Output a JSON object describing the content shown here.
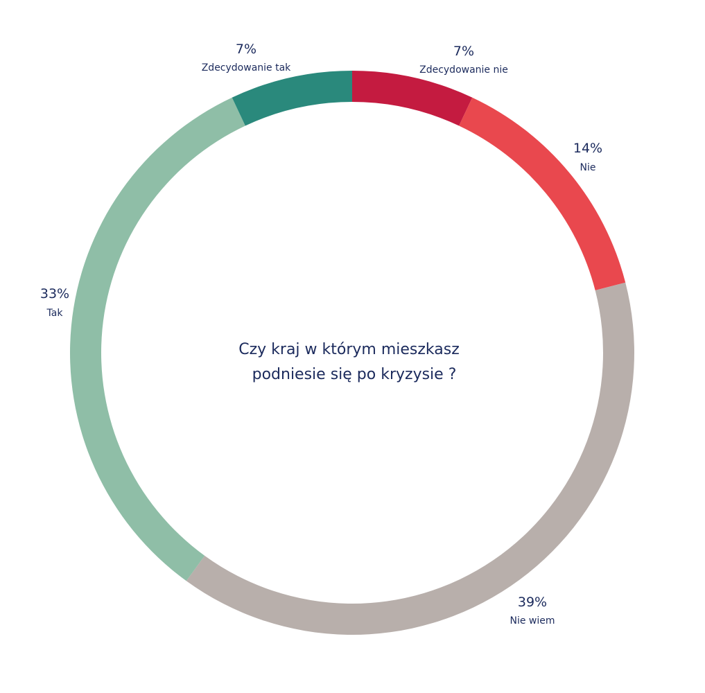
{
  "chart_data": {
    "type": "pie",
    "variant": "donut",
    "title_lines": [
      "Czy kraj w którym mieszkasz",
      "podniesie się po kryzysie ?"
    ],
    "slices": [
      {
        "label": "Zdecydowanie nie",
        "value": 7,
        "value_label": "7%",
        "color": "#c41b40"
      },
      {
        "label": "Nie",
        "value": 14,
        "value_label": "14%",
        "color": "#e9484e"
      },
      {
        "label": "Nie wiem",
        "value": 39,
        "value_label": "39%",
        "color": "#b8afab"
      },
      {
        "label": "Tak",
        "value": 33,
        "value_label": "33%",
        "color": "#8fbea7"
      },
      {
        "label": "Zdecydowanie tak",
        "value": 7,
        "value_label": "7%",
        "color": "#2a897c"
      }
    ]
  }
}
